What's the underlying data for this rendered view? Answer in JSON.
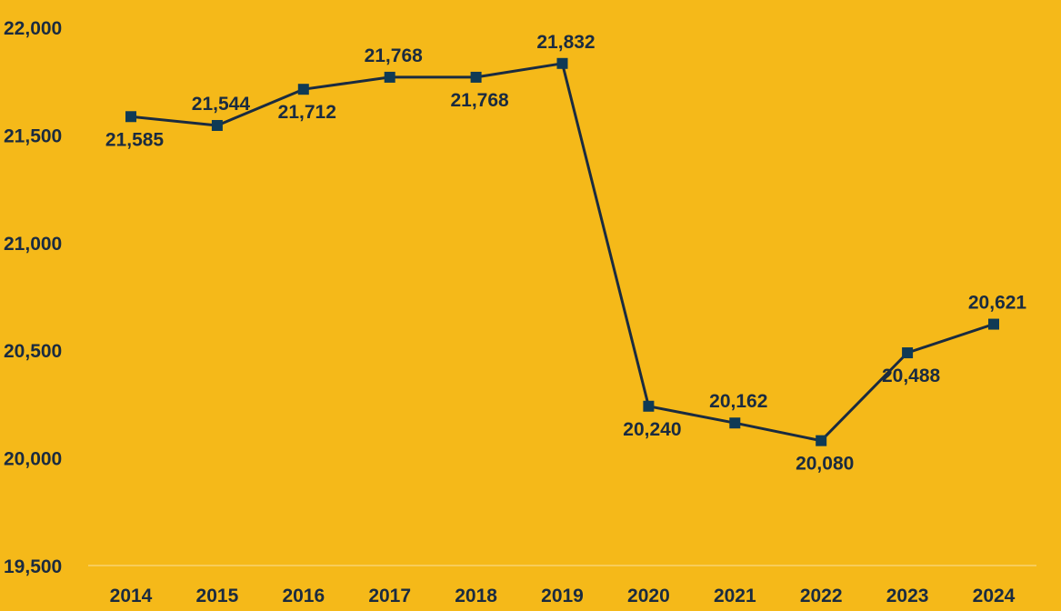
{
  "chart_data": {
    "type": "line",
    "title": "",
    "xlabel": "",
    "ylabel": "",
    "categories": [
      "2014",
      "2015",
      "2016",
      "2017",
      "2018",
      "2019",
      "2020",
      "2021",
      "2022",
      "2023",
      "2024"
    ],
    "series": [
      {
        "values": [
          21585,
          21544,
          21712,
          21768,
          21768,
          21832,
          20240,
          20162,
          20080,
          20488,
          20621
        ],
        "labels": [
          "21,585",
          "21,544",
          "21,712",
          "21,768",
          "21,768",
          "21,832",
          "20,240",
          "20,162",
          "20,080",
          "20,488",
          "20,621"
        ],
        "label_positions": [
          "below",
          "above",
          "below",
          "above",
          "below",
          "above",
          "below",
          "above",
          "below",
          "below",
          "above"
        ]
      }
    ],
    "ylim": [
      19500,
      22000
    ],
    "yticks": [
      19500,
      20000,
      20500,
      21000,
      21500,
      22000
    ],
    "ytick_labels": [
      "19,500",
      "20,000",
      "20,500",
      "21,000",
      "21,500",
      "22,000"
    ],
    "grid": false,
    "legend": "none",
    "colors": {
      "background": "#F5B919",
      "line": "#1A2B40",
      "marker": "#0F3A55",
      "text": "#1A2B40",
      "axis": "#F8D370"
    }
  }
}
